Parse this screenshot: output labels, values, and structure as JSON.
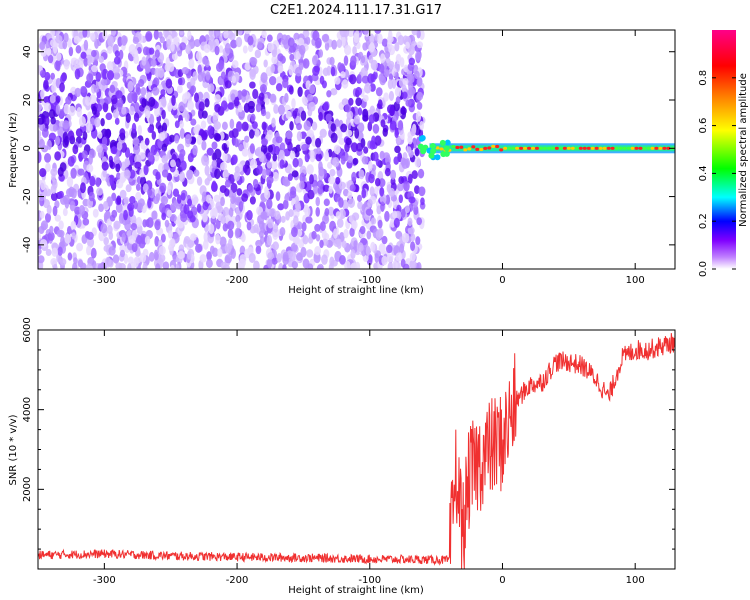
{
  "title": "C2E1.2024.111.17.31.G17",
  "chart_data": [
    {
      "type": "heatmap",
      "xlabel": "Height of straight line (km)",
      "ylabel": "Frequency (Hz)",
      "xlim": [
        -350,
        130
      ],
      "ylim": [
        -50,
        49
      ],
      "xticks": [
        -300,
        -200,
        -100,
        0,
        100
      ],
      "yticks": [
        -40,
        -20,
        0,
        20,
        40
      ],
      "colorbar": {
        "label": "Normalized spectral amplitude",
        "range": [
          0,
          1
        ],
        "ticks": [
          0.0,
          0.2,
          0.4,
          0.6,
          0.8
        ],
        "colormap": [
          "#ffffff",
          "#a020f0",
          "#0000ff",
          "#00ffff",
          "#00ff00",
          "#ffff00",
          "#ff0000",
          "#ff00aa"
        ]
      },
      "regions": [
        {
          "x_range": [
            -350,
            -60
          ],
          "description_values": {
            "freq_range": [
              -50,
              49
            ],
            "amplitude": [
              0.0,
              0.2
            ]
          }
        },
        {
          "x_range": [
            -60,
            130
          ],
          "line_frequency": 0,
          "amplitude_peak": 0.9
        }
      ],
      "grid": false
    },
    {
      "type": "line",
      "xlabel": "Height of straight line (km)",
      "ylabel": "SNR (10 * v/v)",
      "xlim": [
        -350,
        130
      ],
      "ylim": [
        0,
        6000
      ],
      "xticks": [
        -300,
        -200,
        -100,
        0,
        100
      ],
      "yticks": [
        2000,
        4000,
        6000
      ],
      "series": [
        {
          "color": "#f03030",
          "x": [
            -350,
            -300,
            -250,
            -200,
            -150,
            -100,
            -50,
            -40,
            -35,
            -30,
            -25,
            -20,
            -10,
            0,
            10,
            20,
            30,
            40,
            50,
            60,
            70,
            80,
            90,
            100,
            110,
            120,
            130
          ],
          "y": [
            350,
            380,
            330,
            300,
            280,
            250,
            230,
            220,
            2500,
            900,
            2300,
            2600,
            3000,
            3200,
            4200,
            4600,
            4700,
            5200,
            5200,
            5100,
            4800,
            4300,
            5300,
            5500,
            5500,
            5600,
            5700
          ]
        }
      ],
      "grid": false
    }
  ]
}
